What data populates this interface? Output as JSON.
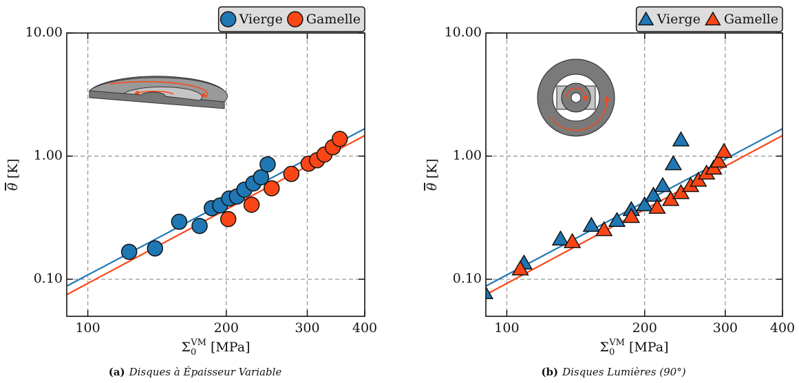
{
  "chart_data": [
    {
      "type": "scatter",
      "marker": "circle",
      "xscale": "log",
      "yscale": "log",
      "grid": true,
      "legend": "top-right",
      "caption": {
        "label": "(a)",
        "text": "Disques à Épaisseur Variable"
      },
      "xlabel": {
        "symbol": "Σ",
        "sub": "0",
        "sup": "VM",
        "unit": "[MPa]"
      },
      "ylabel": {
        "symbol": "θ",
        "unit": "[K]"
      },
      "xlim": [
        90,
        400
      ],
      "ylim": [
        0.05,
        10
      ],
      "xticks": [
        100,
        200,
        300,
        400
      ],
      "yticks": [
        {
          "value": 0.1,
          "label": "0.10"
        },
        {
          "value": 1,
          "label": "1.00"
        },
        {
          "value": 10,
          "label": "10.00"
        }
      ],
      "series": [
        {
          "name": "Vierge",
          "color": "#1f77b4",
          "x": [
            123,
            140,
            158,
            175,
            186,
            194,
            203,
            211,
            219,
            229,
            238,
            246
          ],
          "values": [
            0.167,
            0.178,
            0.293,
            0.271,
            0.378,
            0.398,
            0.453,
            0.47,
            0.534,
            0.6,
            0.673,
            0.858
          ]
        },
        {
          "name": "Gamelle",
          "color": "#fa4616",
          "x": [
            202,
            227,
            251,
            277,
            302,
            315,
            327,
            341,
            353
          ],
          "values": [
            0.308,
            0.403,
            0.548,
            0.717,
            0.869,
            0.926,
            1.03,
            1.18,
            1.38
          ]
        }
      ],
      "fits": [
        {
          "color": "#1f77b4",
          "x": [
            90,
            400
          ],
          "values": [
            0.088,
            1.67
          ]
        },
        {
          "color": "#fa4616",
          "x": [
            90,
            400
          ],
          "values": [
            0.075,
            1.47
          ]
        }
      ]
    },
    {
      "type": "scatter",
      "marker": "triangle",
      "xscale": "log",
      "yscale": "log",
      "grid": true,
      "legend": "top-right",
      "caption": {
        "label": "(b)",
        "text": "Disques Lumières (90°)"
      },
      "xlabel": {
        "symbol": "Σ",
        "sub": "0",
        "sup": "VM",
        "unit": "[MPa]"
      },
      "ylabel": {
        "symbol": "θ",
        "unit": "[K]"
      },
      "xlim": [
        90,
        400
      ],
      "ylim": [
        0.05,
        10
      ],
      "xticks": [
        100,
        200,
        300,
        400
      ],
      "yticks": [
        {
          "value": 0.1,
          "label": "0.10"
        },
        {
          "value": 1,
          "label": "1.00"
        },
        {
          "value": 10,
          "label": "10.00"
        }
      ],
      "series": [
        {
          "name": "Vierge",
          "color": "#1f77b4",
          "x": [
            89.5,
            109,
            131,
            153,
            174,
            187,
            200,
            209,
            219,
            231,
            240
          ],
          "values": [
            0.077,
            0.134,
            0.21,
            0.271,
            0.297,
            0.364,
            0.398,
            0.476,
            0.57,
            0.858,
            1.34
          ]
        },
        {
          "name": "Gamelle",
          "color": "#fa4616",
          "x": [
            107,
            139,
            163,
            187,
            213,
            228,
            240,
            252,
            262,
            273,
            283,
            290,
            298
          ],
          "values": [
            0.12,
            0.2,
            0.25,
            0.32,
            0.38,
            0.44,
            0.5,
            0.57,
            0.63,
            0.72,
            0.79,
            0.9,
            1.08
          ]
        }
      ],
      "fits": [
        {
          "color": "#1f77b4",
          "x": [
            90,
            400
          ],
          "values": [
            0.088,
            1.67
          ]
        },
        {
          "color": "#fa4616",
          "x": [
            90,
            400
          ],
          "values": [
            0.075,
            1.47
          ]
        }
      ]
    }
  ]
}
